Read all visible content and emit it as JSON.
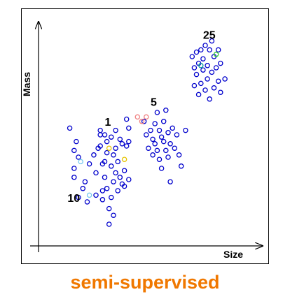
{
  "chart_data": {
    "type": "scatter",
    "xlabel": "Size",
    "ylabel": "Mass",
    "grid": false,
    "legend": "none",
    "xlim": [
      0,
      100
    ],
    "ylim": [
      0,
      100
    ],
    "default_point_color": "#0000cc",
    "series": [
      {
        "color": "#0000cc",
        "points": [
          [
            13,
            53
          ],
          [
            15,
            43
          ],
          [
            15,
            35
          ],
          [
            15,
            31
          ],
          [
            16,
            47
          ],
          [
            17,
            40
          ],
          [
            17,
            22
          ],
          [
            19,
            26
          ],
          [
            20,
            29
          ],
          [
            21,
            20
          ],
          [
            22,
            37
          ],
          [
            24,
            41
          ],
          [
            25,
            23
          ],
          [
            25,
            33
          ],
          [
            26,
            44
          ],
          [
            27,
            52
          ],
          [
            27,
            50
          ],
          [
            27,
            45
          ],
          [
            28,
            37
          ],
          [
            28,
            25
          ],
          [
            28,
            21
          ],
          [
            29,
            50
          ],
          [
            29,
            38
          ],
          [
            29,
            31
          ],
          [
            30,
            47
          ],
          [
            30,
            42
          ],
          [
            30,
            26
          ],
          [
            31,
            17
          ],
          [
            31,
            10
          ],
          [
            32,
            49
          ],
          [
            32,
            36
          ],
          [
            32,
            22
          ],
          [
            33,
            41
          ],
          [
            33,
            29
          ],
          [
            33,
            14
          ],
          [
            34,
            52
          ],
          [
            34,
            44
          ],
          [
            34,
            33
          ],
          [
            35,
            38
          ],
          [
            35,
            25
          ],
          [
            36,
            48
          ],
          [
            36,
            31
          ],
          [
            37,
            28
          ],
          [
            37,
            46
          ],
          [
            38,
            34
          ],
          [
            38,
            27
          ],
          [
            39,
            45
          ],
          [
            39,
            57
          ],
          [
            40,
            53
          ],
          [
            40,
            47
          ],
          [
            40,
            30
          ],
          [
            47,
            56
          ],
          [
            48,
            50
          ],
          [
            49,
            44
          ],
          [
            50,
            52
          ],
          [
            51,
            48
          ],
          [
            51,
            41
          ],
          [
            52,
            55
          ],
          [
            52,
            46
          ],
          [
            53,
            60
          ],
          [
            53,
            43
          ],
          [
            54,
            52
          ],
          [
            54,
            39
          ],
          [
            55,
            49
          ],
          [
            55,
            35
          ],
          [
            56,
            47
          ],
          [
            56,
            56
          ],
          [
            57,
            43
          ],
          [
            57,
            61
          ],
          [
            58,
            51
          ],
          [
            58,
            40
          ],
          [
            59,
            46
          ],
          [
            59,
            29
          ],
          [
            60,
            53
          ],
          [
            61,
            44
          ],
          [
            62,
            50
          ],
          [
            63,
            41
          ],
          [
            64,
            36
          ],
          [
            66,
            52
          ],
          [
            69,
            85
          ],
          [
            70,
            80
          ],
          [
            70,
            72
          ],
          [
            71,
            87
          ],
          [
            71,
            77
          ],
          [
            72,
            82
          ],
          [
            72,
            68
          ],
          [
            73,
            88
          ],
          [
            73,
            73
          ],
          [
            74,
            79
          ],
          [
            74,
            84
          ],
          [
            75,
            70
          ],
          [
            75,
            90
          ],
          [
            76,
            81
          ],
          [
            76,
            75
          ],
          [
            77,
            88
          ],
          [
            77,
            66
          ],
          [
            78,
            92
          ],
          [
            78,
            78
          ],
          [
            79,
            71
          ],
          [
            79,
            85
          ],
          [
            80,
            80
          ],
          [
            81,
            74
          ],
          [
            81,
            88
          ],
          [
            82,
            82
          ],
          [
            82,
            69
          ],
          [
            84,
            75
          ]
        ]
      },
      {
        "color": "#e6c400",
        "points": [
          [
            31,
            44
          ],
          [
            38,
            39
          ]
        ]
      },
      {
        "color": "#77c8f0",
        "points": [
          [
            18,
            38
          ],
          [
            22,
            23
          ]
        ]
      },
      {
        "color": "#f08080",
        "points": [
          [
            44,
            58
          ],
          [
            46,
            56
          ],
          [
            48,
            58
          ]
        ]
      },
      {
        "color": "#33cc33",
        "points": [
          [
            80,
            86
          ]
        ]
      },
      {
        "color": "#009999",
        "points": [
          [
            73,
            81
          ]
        ]
      }
    ],
    "annotations": [
      {
        "text": "25",
        "x": 74,
        "y": 93
      },
      {
        "text": "5",
        "x": 50,
        "y": 63
      },
      {
        "text": "1",
        "x": 29,
        "y": 54
      },
      {
        "text": "10",
        "x": 12,
        "y": 20
      }
    ]
  },
  "caption": {
    "text": "semi-supervised",
    "color": "#f07800"
  },
  "axis_color": "#000000"
}
